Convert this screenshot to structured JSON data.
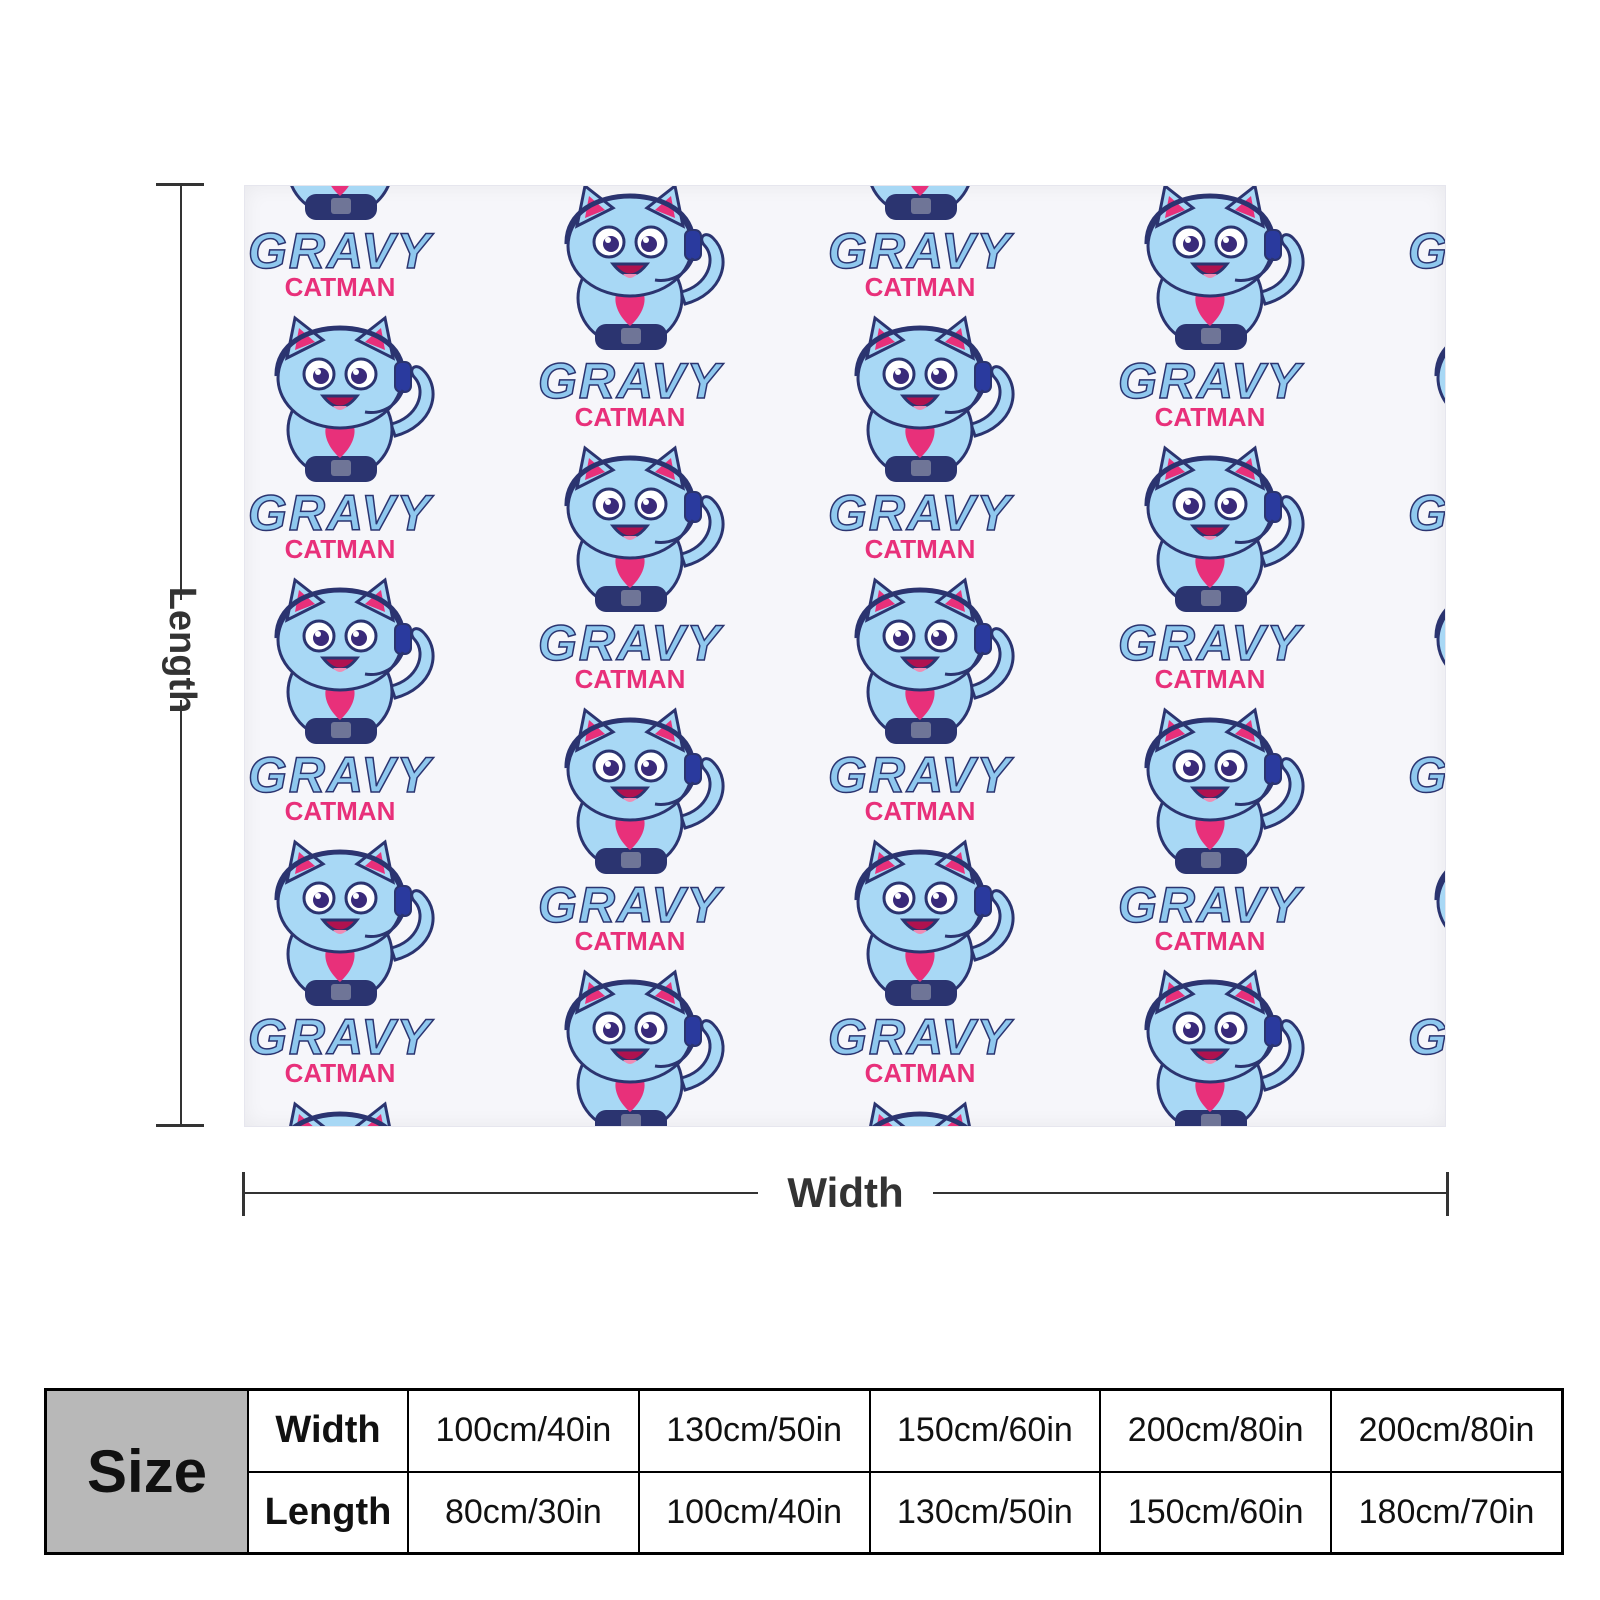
{
  "diagram": {
    "length_label": "Length",
    "width_label": "Width"
  },
  "pattern": {
    "title": "GRAVY",
    "subtitle": "CATMAN",
    "colors": {
      "cat_body": "#a8d8f5",
      "cat_outline": "#2b3470",
      "accent_pink": "#e8307a",
      "title_blue": "#8fc8ee",
      "headset": "#2a3a9e",
      "blanket_bg": "#f6f6fa"
    }
  },
  "size_table": {
    "header": "Size",
    "width_label": "Width",
    "length_label": "Length",
    "widths": [
      "100cm/40in",
      "130cm/50in",
      "150cm/60in",
      "200cm/80in",
      "200cm/80in"
    ],
    "lengths": [
      "80cm/30in",
      "100cm/40in",
      "130cm/50in",
      "150cm/60in",
      "180cm/70in"
    ]
  }
}
